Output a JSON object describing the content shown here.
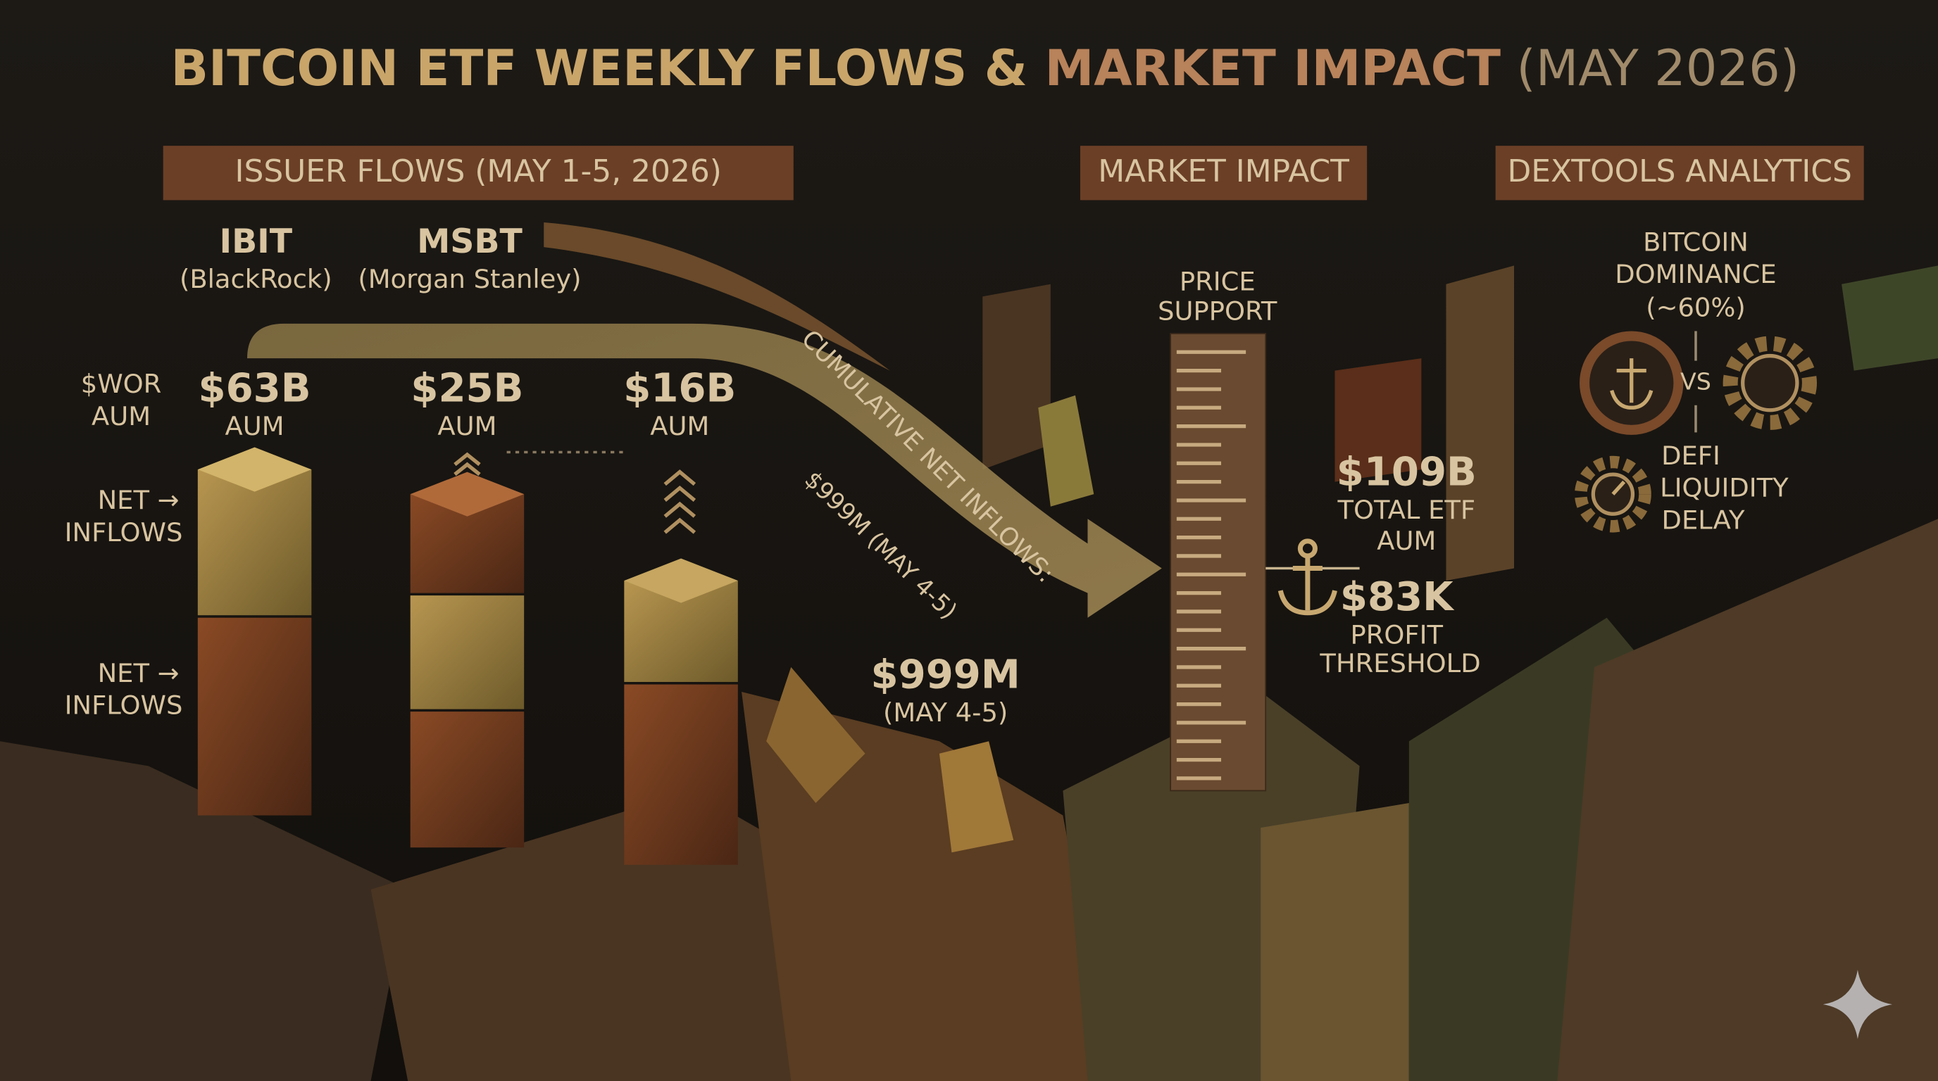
{
  "title": {
    "part1": "BITCOIN ETF WEEKLY FLOWS & ",
    "part2": "MARKET IMPACT",
    "part3": " (MAY 2026)"
  },
  "sections": [
    "ISSUER FLOWS (MAY 1-5, 2026)",
    "MARKET IMPACT",
    "DEXTOOLS ANALYTICS"
  ],
  "issuers": [
    {
      "ticker": "IBIT",
      "name": "(BlackRock)"
    },
    {
      "ticker": "MSBT",
      "name": "(Morgan Stanley)"
    }
  ],
  "row_labels": {
    "aum": [
      "$WOR",
      "AUM"
    ],
    "inflows_1": [
      "NET →",
      "INFLOWS"
    ],
    "inflows_2": [
      "NET →",
      "INFLOWS"
    ]
  },
  "aum_values": [
    {
      "value": "$63B",
      "unit": "AUM"
    },
    {
      "value": "$25B",
      "unit": "AUM"
    },
    {
      "value": "$16B",
      "unit": "AUM"
    }
  ],
  "flow_arrow": {
    "label": "CUMULATIVE NET INFLOWS:",
    "sublabel": "$999M (MAY 4-5)"
  },
  "cumulative": {
    "value": "$999M",
    "period": "(MAY 4-5)"
  },
  "market_impact": {
    "price_support": [
      "PRICE",
      "SUPPORT"
    ],
    "total_aum": {
      "value": "$109B",
      "lines": [
        "TOTAL ETF",
        "AUM"
      ]
    },
    "profit": {
      "value": "$83K",
      "lines": [
        "PROFIT",
        "THRESHOLD"
      ]
    }
  },
  "analytics": {
    "dominance": [
      "BITCOIN",
      "DOMINANCE",
      "(~60%)"
    ],
    "versus": "VS",
    "defi": [
      "DEFI",
      "LIQUIDITY",
      "DELAY"
    ]
  }
}
